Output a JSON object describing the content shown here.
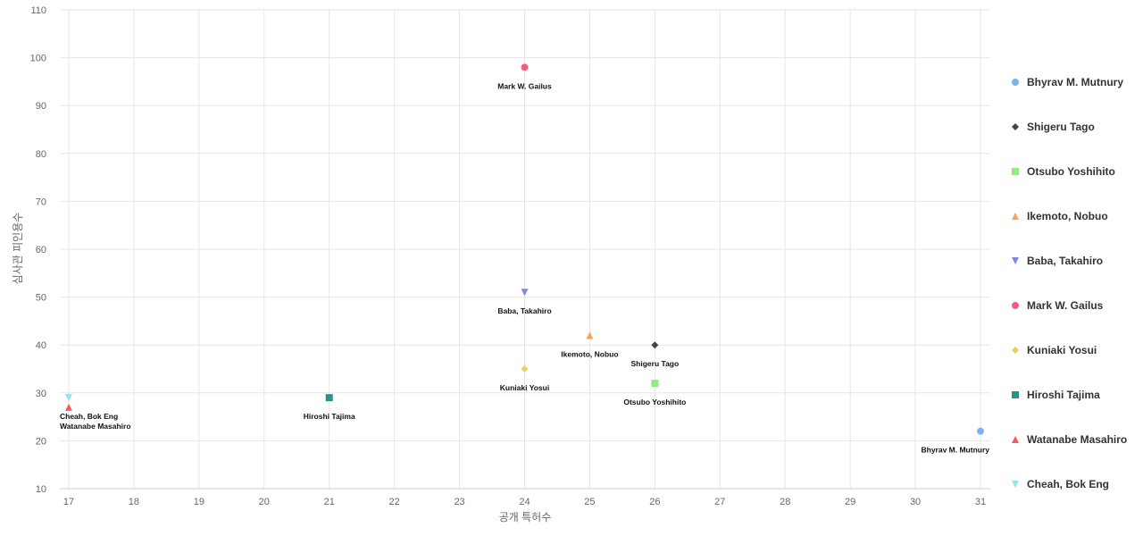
{
  "chart_data": {
    "type": "scatter",
    "title": "",
    "xlabel": "공개 특허수",
    "ylabel": "심사관 피인용수",
    "xlim": [
      17,
      31
    ],
    "ylim": [
      10,
      110
    ],
    "x_ticks": [
      17,
      18,
      19,
      20,
      21,
      22,
      23,
      24,
      25,
      26,
      27,
      28,
      29,
      30,
      31
    ],
    "y_ticks": [
      10,
      20,
      30,
      40,
      50,
      60,
      70,
      80,
      90,
      100,
      110
    ],
    "grid": true,
    "legend_position": "right",
    "series": [
      {
        "name": "Bhyrav M. Mutnury",
        "x": 31,
        "y": 22,
        "label": "Bhyrav M. Mutnury",
        "marker": "circle",
        "color": "#7cb5ec"
      },
      {
        "name": "Shigeru Tago",
        "x": 26,
        "y": 40,
        "label": "Shigeru Tago",
        "marker": "diamond",
        "color": "#434348"
      },
      {
        "name": "Otsubo Yoshihito",
        "x": 26,
        "y": 32,
        "label": "Otsubo Yoshihito",
        "marker": "square",
        "color": "#90ed7d"
      },
      {
        "name": "Ikemoto, Nobuo",
        "x": 25,
        "y": 42,
        "label": "Ikemoto, Nobuo",
        "marker": "triangle",
        "color": "#f7a35c"
      },
      {
        "name": "Baba, Takahiro",
        "x": 24,
        "y": 51,
        "label": "Baba, Takahiro",
        "marker": "triangle-down",
        "color": "#8085e9"
      },
      {
        "name": "Mark W. Gailus",
        "x": 24,
        "y": 98,
        "label": "Mark W. Gailus",
        "marker": "circle",
        "color": "#f15c80"
      },
      {
        "name": "Kuniaki Yosui",
        "x": 24,
        "y": 35,
        "label": "Kuniaki Yosui",
        "marker": "diamond",
        "color": "#e4d354"
      },
      {
        "name": "Hiroshi Tajima",
        "x": 21,
        "y": 29,
        "label": "Hiroshi Tajima",
        "marker": "square",
        "color": "#2b908f"
      },
      {
        "name": "Watanabe Masahiro",
        "x": 17,
        "y": 27,
        "label": "Watanabe Masahiro",
        "marker": "triangle",
        "color": "#f45b5b"
      },
      {
        "name": "Cheah, Bok Eng",
        "x": 17,
        "y": 29,
        "label": "Cheah, Bok Eng",
        "marker": "triangle-down",
        "color": "#91e8e1"
      }
    ]
  }
}
